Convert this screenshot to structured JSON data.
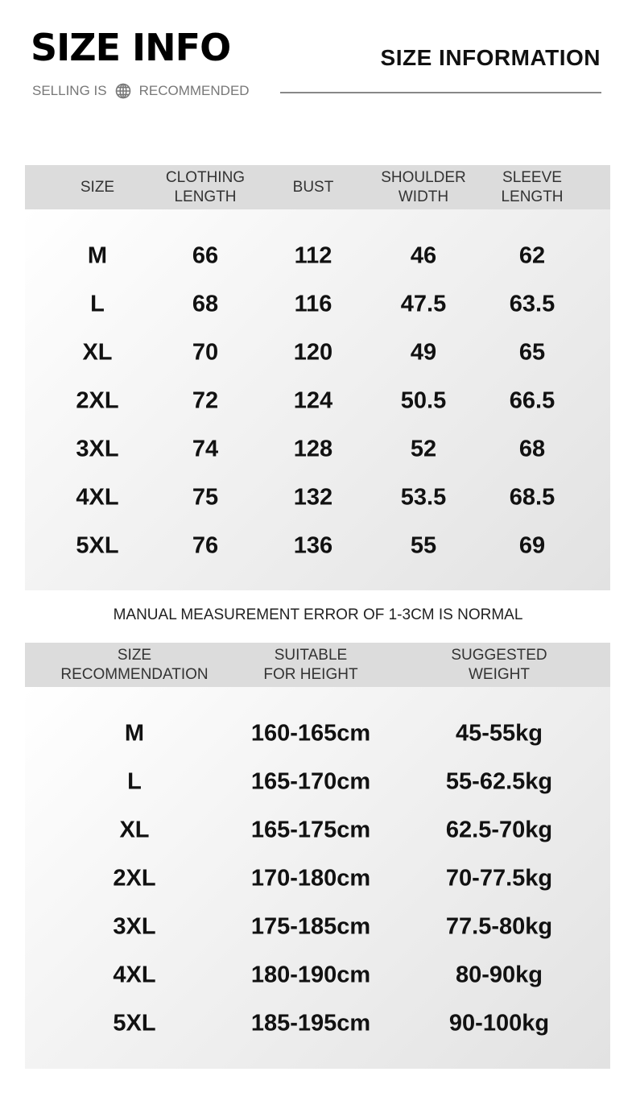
{
  "header": {
    "title": "SIZE INFO",
    "subtitle_left": "SELLING IS",
    "subtitle_icon": "globe-icon",
    "subtitle_right": "RECOMMENDED",
    "right_title": "SIZE INFORMATION"
  },
  "size_table": {
    "headers": [
      "SIZE",
      "CLOTHING\nLENGTH",
      "BUST",
      "SHOULDER\nWIDTH",
      "SLEEVE\nLENGTH"
    ],
    "rows": [
      [
        "M",
        "66",
        "112",
        "46",
        "62"
      ],
      [
        "L",
        "68",
        "116",
        "47.5",
        "63.5"
      ],
      [
        "XL",
        "70",
        "120",
        "49",
        "65"
      ],
      [
        "2XL",
        "72",
        "124",
        "50.5",
        "66.5"
      ],
      [
        "3XL",
        "74",
        "128",
        "52",
        "68"
      ],
      [
        "4XL",
        "75",
        "132",
        "53.5",
        "68.5"
      ],
      [
        "5XL",
        "76",
        "136",
        "55",
        "69"
      ]
    ]
  },
  "note": "MANUAL MEASUREMENT ERROR OF 1-3CM IS NORMAL",
  "rec_table": {
    "headers": [
      "SIZE\nRECOMMENDATION",
      "SUITABLE\nFOR HEIGHT",
      "SUGGESTED\nWEIGHT"
    ],
    "rows": [
      [
        "M",
        "160-165cm",
        "45-55kg"
      ],
      [
        "L",
        "165-170cm",
        "55-62.5kg"
      ],
      [
        "XL",
        "165-175cm",
        "62.5-70kg"
      ],
      [
        "2XL",
        "170-180cm",
        "70-77.5kg"
      ],
      [
        "3XL",
        "175-185cm",
        "77.5-80kg"
      ],
      [
        "4XL",
        "180-190cm",
        "80-90kg"
      ],
      [
        "5XL",
        "185-195cm",
        "90-100kg"
      ]
    ]
  }
}
